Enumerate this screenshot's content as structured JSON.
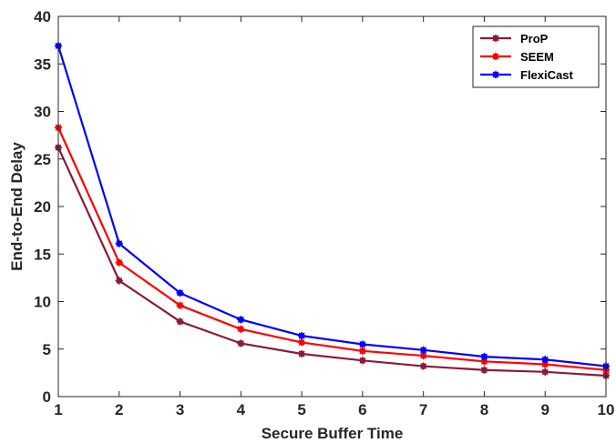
{
  "chart_data": {
    "type": "line",
    "title": "",
    "xlabel": "Secure Buffer Time",
    "ylabel": "End-to-End Delay",
    "xlim": [
      1,
      10
    ],
    "ylim": [
      0,
      40
    ],
    "x": [
      1,
      2,
      3,
      4,
      5,
      6,
      7,
      8,
      9,
      10
    ],
    "xticks": [
      "1",
      "2",
      "3",
      "4",
      "5",
      "6",
      "7",
      "8",
      "9",
      "10"
    ],
    "yticks": [
      "0",
      "5",
      "10",
      "15",
      "20",
      "25",
      "30",
      "35",
      "40"
    ],
    "grid": false,
    "legend_position": "top-right",
    "series": [
      {
        "name": "ProP",
        "color": "#8b1a3a",
        "values": [
          26.2,
          12.2,
          7.9,
          5.6,
          4.5,
          3.8,
          3.2,
          2.8,
          2.6,
          2.2
        ]
      },
      {
        "name": "SEEM",
        "color": "#ff0000",
        "values": [
          28.3,
          14.1,
          9.6,
          7.1,
          5.7,
          4.8,
          4.3,
          3.7,
          3.4,
          2.8
        ]
      },
      {
        "name": "FlexiCast",
        "color": "#0000ff",
        "values": [
          36.9,
          16.1,
          10.9,
          8.1,
          6.4,
          5.5,
          4.9,
          4.2,
          3.9,
          3.2
        ]
      }
    ]
  }
}
